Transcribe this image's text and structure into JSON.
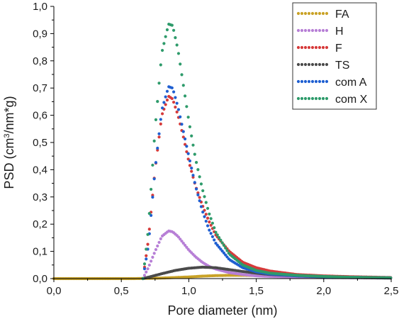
{
  "chart_data": {
    "type": "scatter",
    "title": "",
    "xlabel": "Pore diameter (nm)",
    "ylabel_parts": [
      "PSD (cm",
      "3",
      "/nm*g)"
    ],
    "xlim": [
      0.0,
      2.5
    ],
    "ylim": [
      0.0,
      1.0
    ],
    "x_ticks": [
      "0,0",
      "0,5",
      "1,0",
      "1,5",
      "2,0",
      "2,5"
    ],
    "y_ticks": [
      "0,0",
      "0,1",
      "0,2",
      "0,3",
      "0,4",
      "0,5",
      "0,6",
      "0,7",
      "0,8",
      "0,9",
      "1,0"
    ],
    "grid": false,
    "legend_position": "top-right",
    "series": [
      {
        "name": "FA",
        "color": "#c9a227",
        "x": [
          0.0,
          0.2,
          0.4,
          0.6,
          0.7,
          0.8,
          0.9,
          1.0,
          1.1,
          1.2,
          1.3,
          1.4,
          1.5,
          1.6,
          1.8,
          2.0,
          2.2,
          2.4,
          2.5
        ],
        "y": [
          0.0,
          0.0,
          0.0,
          0.0,
          0.001,
          0.002,
          0.004,
          0.006,
          0.009,
          0.011,
          0.012,
          0.012,
          0.011,
          0.01,
          0.008,
          0.006,
          0.004,
          0.003,
          0.002
        ]
      },
      {
        "name": "H",
        "color": "#b77fd6",
        "x": [
          0.66,
          0.7,
          0.75,
          0.8,
          0.85,
          0.88,
          0.92,
          0.96,
          1.0,
          1.05,
          1.1,
          1.15,
          1.2,
          1.3,
          1.4,
          1.5,
          1.6,
          1.8,
          2.0,
          2.2,
          2.5
        ],
        "y": [
          0.0,
          0.04,
          0.1,
          0.155,
          0.175,
          0.172,
          0.155,
          0.13,
          0.105,
          0.08,
          0.06,
          0.045,
          0.035,
          0.022,
          0.015,
          0.01,
          0.008,
          0.005,
          0.004,
          0.003,
          0.002
        ]
      },
      {
        "name": "F",
        "color": "#d63a3a",
        "x": [
          0.66,
          0.7,
          0.75,
          0.8,
          0.85,
          0.88,
          0.92,
          0.96,
          1.0,
          1.05,
          1.1,
          1.15,
          1.2,
          1.3,
          1.4,
          1.5,
          1.6,
          1.8,
          2.0,
          2.2,
          2.5
        ],
        "y": [
          0.0,
          0.14,
          0.4,
          0.6,
          0.67,
          0.66,
          0.6,
          0.52,
          0.43,
          0.34,
          0.27,
          0.21,
          0.16,
          0.1,
          0.06,
          0.04,
          0.028,
          0.015,
          0.01,
          0.007,
          0.004
        ]
      },
      {
        "name": "TS",
        "color": "#4a4a4a",
        "x": [
          0.66,
          0.7,
          0.8,
          0.9,
          1.0,
          1.1,
          1.2,
          1.3,
          1.4,
          1.5,
          1.6,
          1.8,
          2.0,
          2.2,
          2.5
        ],
        "y": [
          0.0,
          0.005,
          0.018,
          0.03,
          0.038,
          0.042,
          0.04,
          0.033,
          0.026,
          0.02,
          0.015,
          0.01,
          0.006,
          0.004,
          0.002
        ]
      },
      {
        "name": "com A",
        "color": "#1f5fd1",
        "x": [
          0.66,
          0.7,
          0.75,
          0.8,
          0.85,
          0.88,
          0.92,
          0.96,
          1.0,
          1.05,
          1.1,
          1.15,
          1.2,
          1.3,
          1.4,
          1.5,
          1.6,
          1.8,
          2.0,
          2.2,
          2.5
        ],
        "y": [
          0.0,
          0.12,
          0.4,
          0.62,
          0.705,
          0.7,
          0.63,
          0.54,
          0.45,
          0.34,
          0.25,
          0.18,
          0.13,
          0.07,
          0.04,
          0.025,
          0.017,
          0.01,
          0.007,
          0.005,
          0.003
        ]
      },
      {
        "name": "com X",
        "color": "#2e9b6b",
        "x": [
          0.66,
          0.7,
          0.75,
          0.8,
          0.85,
          0.88,
          0.92,
          0.96,
          1.0,
          1.05,
          1.1,
          1.15,
          1.2,
          1.3,
          1.4,
          1.5,
          1.6,
          1.8,
          2.0,
          2.2,
          2.5
        ],
        "y": [
          0.0,
          0.18,
          0.55,
          0.83,
          0.935,
          0.93,
          0.84,
          0.71,
          0.58,
          0.44,
          0.33,
          0.24,
          0.17,
          0.09,
          0.05,
          0.03,
          0.02,
          0.012,
          0.008,
          0.005,
          0.003
        ]
      }
    ]
  }
}
